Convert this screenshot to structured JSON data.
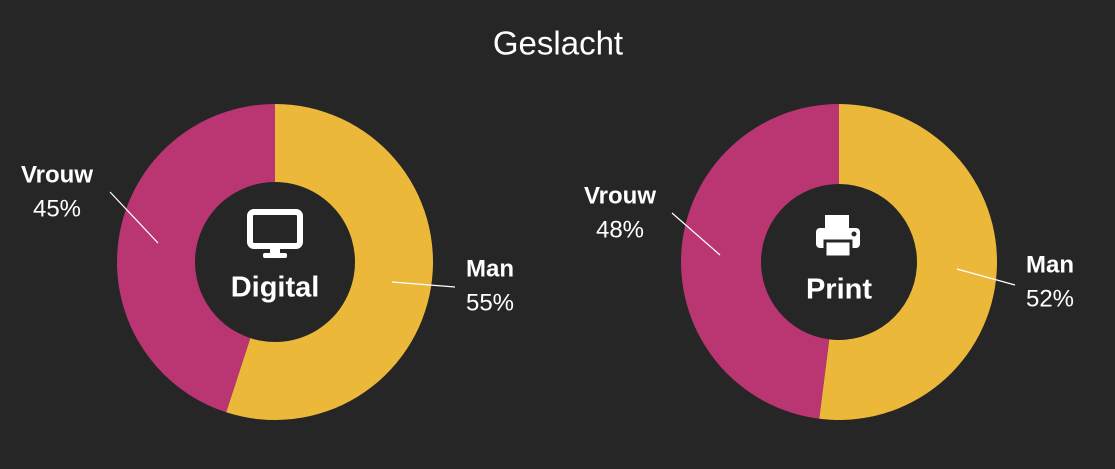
{
  "title": "Geslacht",
  "chart_data": [
    {
      "type": "pie",
      "center_label": "Digital",
      "categories": [
        "Man",
        "Vrouw"
      ],
      "values": [
        55,
        45
      ],
      "value_labels": [
        "55%",
        "45%"
      ],
      "colors": [
        "#ebb83a",
        "#b93672"
      ]
    },
    {
      "type": "pie",
      "center_label": "Print",
      "categories": [
        "Man",
        "Vrouw"
      ],
      "values": [
        52,
        48
      ],
      "value_labels": [
        "52%",
        "48%"
      ],
      "colors": [
        "#ebb83a",
        "#b93672"
      ]
    }
  ]
}
